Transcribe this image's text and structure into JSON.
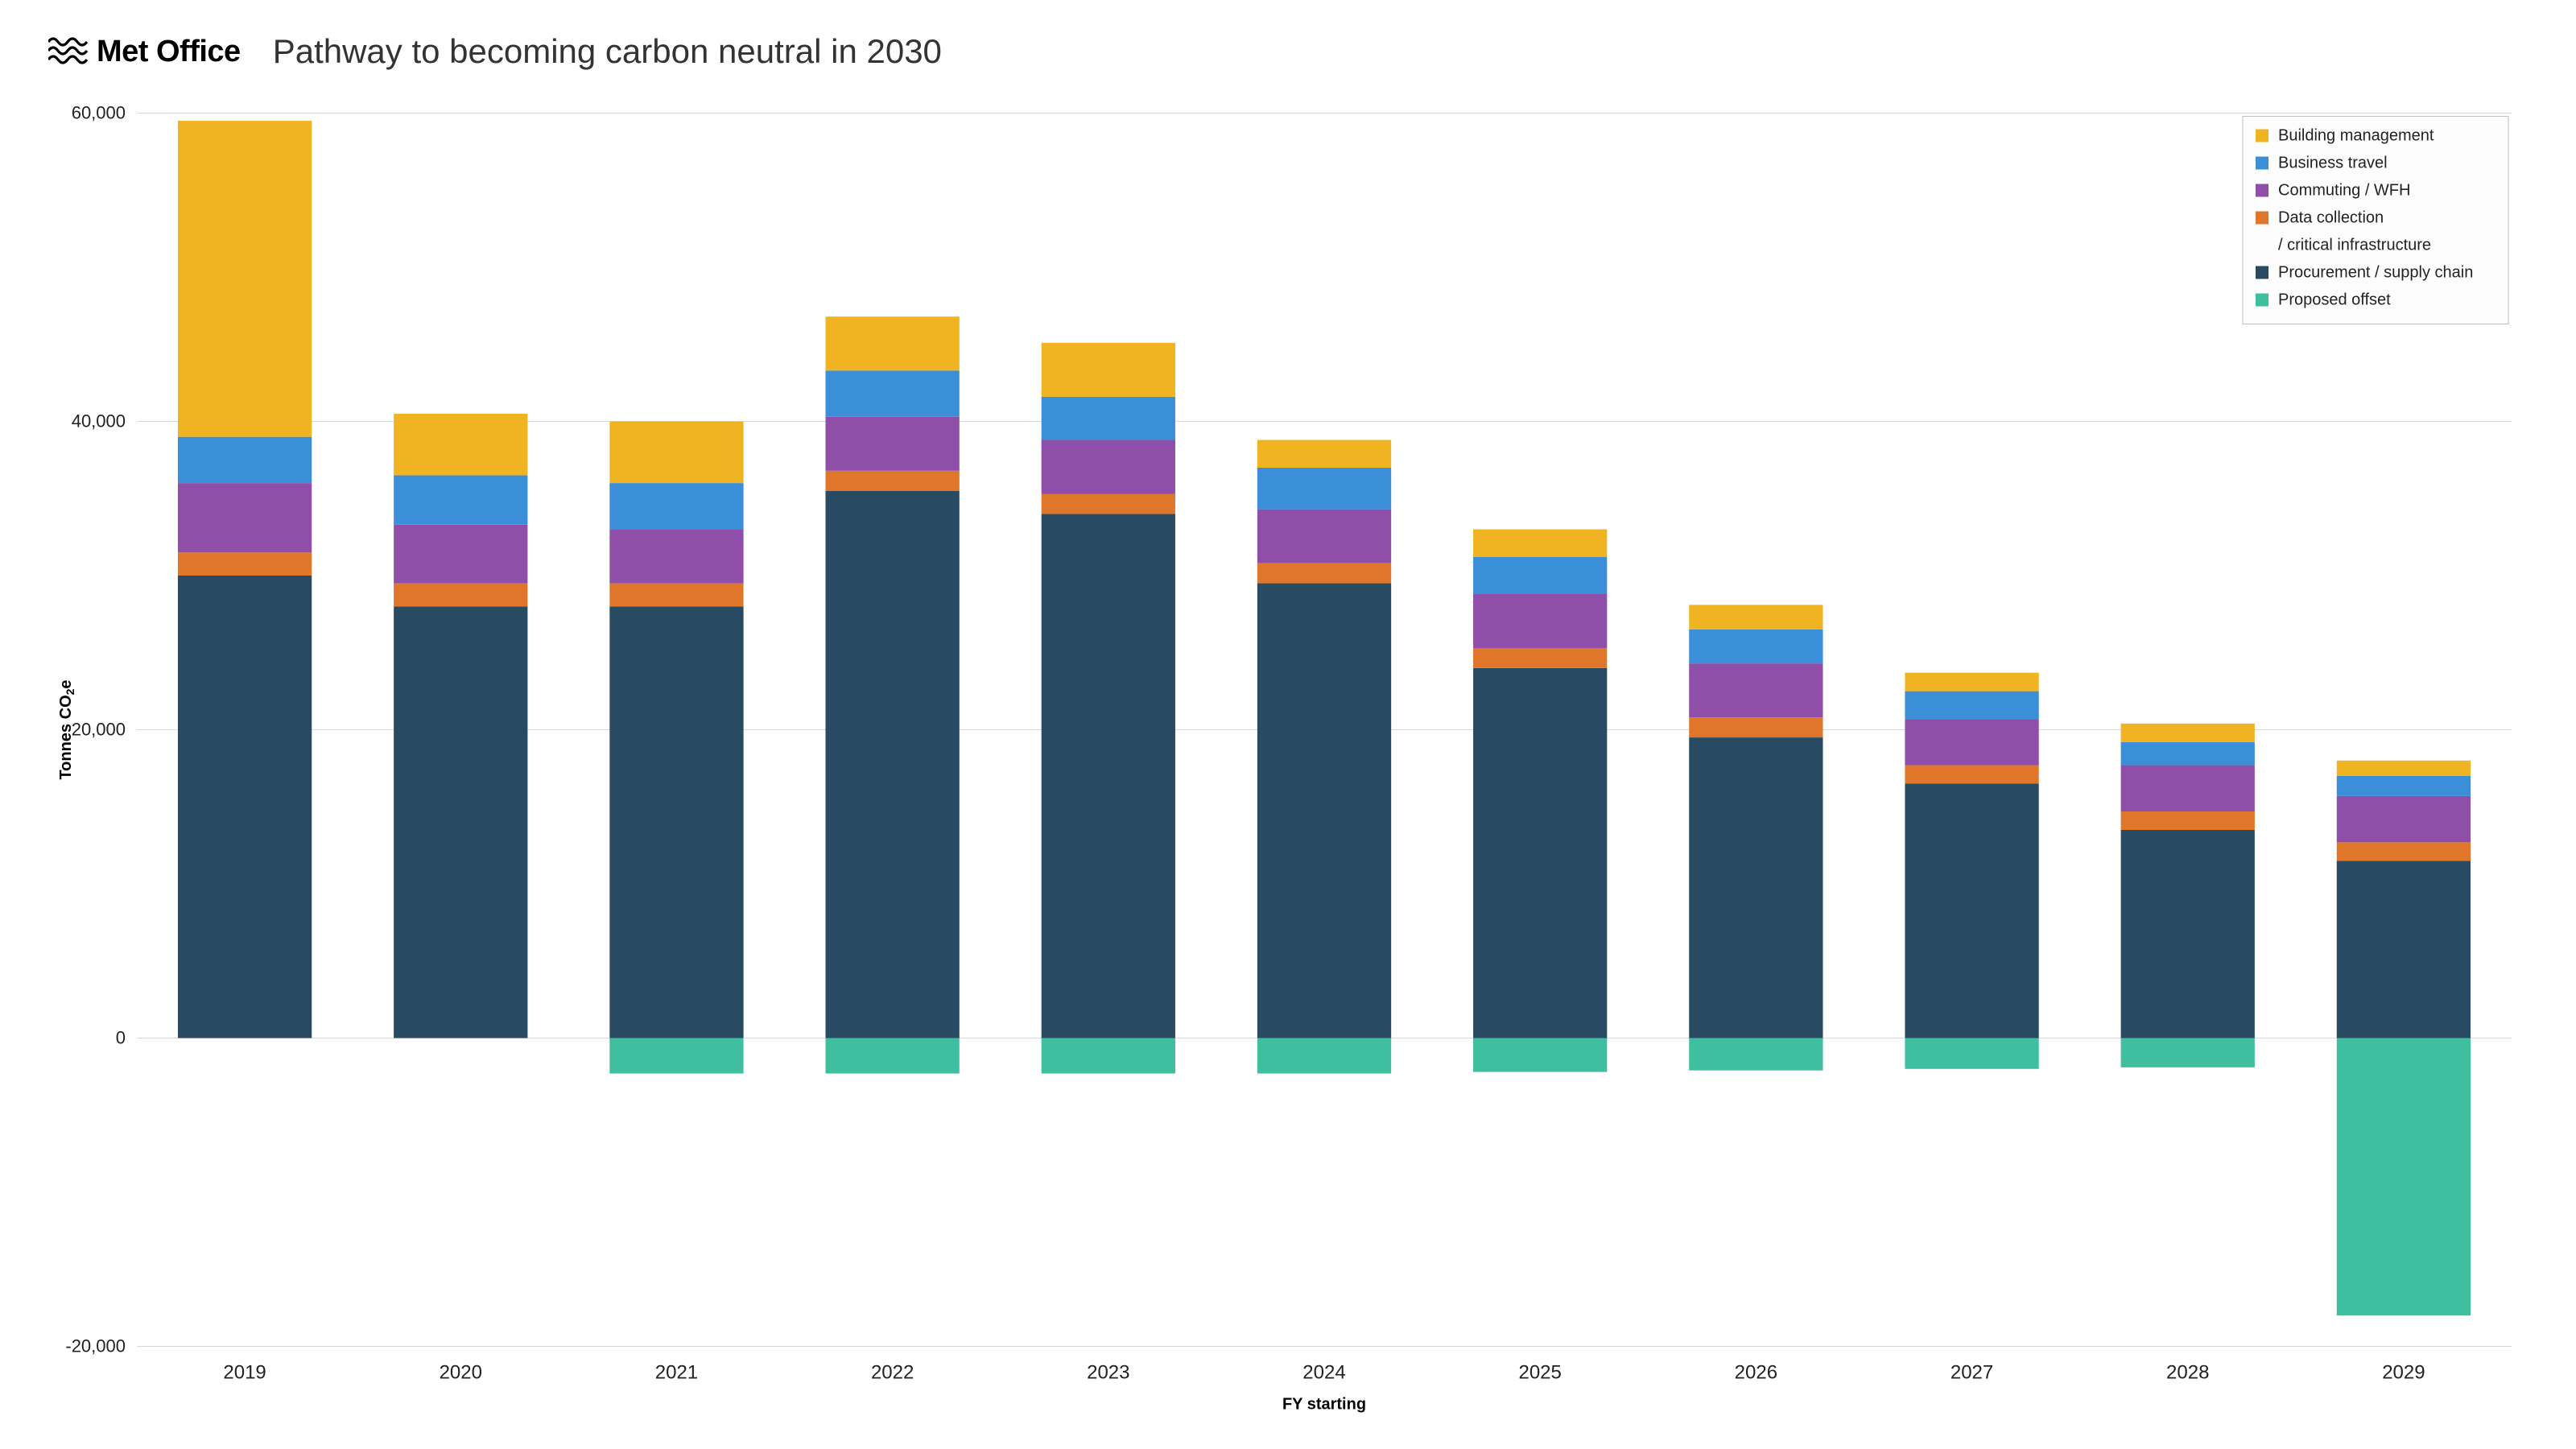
{
  "brand": {
    "logo_text": "Met Office",
    "logo_color": "#000000"
  },
  "chart": {
    "type": "stacked-bar",
    "title": "Pathway to becoming carbon neutral in 2030",
    "title_fontsize": 42,
    "title_fontweight": 300,
    "y_axis_label": "Tonnes CO₂e",
    "x_axis_label": "FY starting",
    "axis_label_fontsize": 20,
    "axis_label_fontweight": 600,
    "tick_label_fontsize": 22,
    "x_tick_label_fontsize": 24,
    "ylim": [
      -20000,
      60000
    ],
    "ytick_step": 20000,
    "y_ticks": [
      -20000,
      0,
      20000,
      40000,
      60000
    ],
    "y_tick_labels": [
      "-20,000",
      "0",
      "20,000",
      "40,000",
      "60,000"
    ],
    "categories": [
      "2019",
      "2020",
      "2021",
      "2022",
      "2023",
      "2024",
      "2025",
      "2026",
      "2027",
      "2028",
      "2029"
    ],
    "series": [
      {
        "key": "building_management",
        "label": "Building management",
        "color": "#f0b322"
      },
      {
        "key": "business_travel",
        "label": "Business travel",
        "color": "#3a8fd8"
      },
      {
        "key": "commuting_wfh",
        "label": "Commuting / WFH",
        "color": "#8f4fa8"
      },
      {
        "key": "data_collection",
        "label": "Data collection\n/ critical infrastructure",
        "color": "#e0762a"
      },
      {
        "key": "procurement",
        "label": "Procurement / supply chain",
        "color": "#284a62"
      },
      {
        "key": "proposed_offset",
        "label": "Proposed offset",
        "color": "#3fbfa0"
      }
    ],
    "data": {
      "procurement": [
        30000,
        28000,
        28000,
        35500,
        34000,
        29500,
        24000,
        19500,
        16500,
        13500,
        11500
      ],
      "data_collection": [
        1500,
        1500,
        1500,
        1300,
        1300,
        1300,
        1300,
        1300,
        1200,
        1200,
        1200
      ],
      "commuting_wfh": [
        4500,
        3800,
        3500,
        3500,
        3500,
        3500,
        3500,
        3500,
        3000,
        3000,
        3000
      ],
      "business_travel": [
        3000,
        3200,
        3000,
        3000,
        2800,
        2700,
        2400,
        2200,
        1800,
        1500,
        1300
      ],
      "building_management": [
        20500,
        4000,
        4000,
        3500,
        3500,
        1800,
        1800,
        1600,
        1200,
        1200,
        1000
      ],
      "proposed_offset": [
        0,
        0,
        -2300,
        -2300,
        -2300,
        -2300,
        -2200,
        -2100,
        -2000,
        -1900,
        -18000
      ]
    },
    "stack_order_positive": [
      "procurement",
      "data_collection",
      "commuting_wfh",
      "business_travel",
      "building_management"
    ],
    "stack_order_negative": [
      "proposed_offset"
    ],
    "bar_width_ratio": 0.62,
    "background_color": "#ffffff",
    "grid_color": "#d9d9d9",
    "grid_width": 1,
    "legend": {
      "position": "top-right",
      "border_color": "#bfbfbf",
      "bg_color": "#fdfdfd",
      "swatch_size": 16,
      "row_gap": 34,
      "fontsize": 20
    }
  }
}
